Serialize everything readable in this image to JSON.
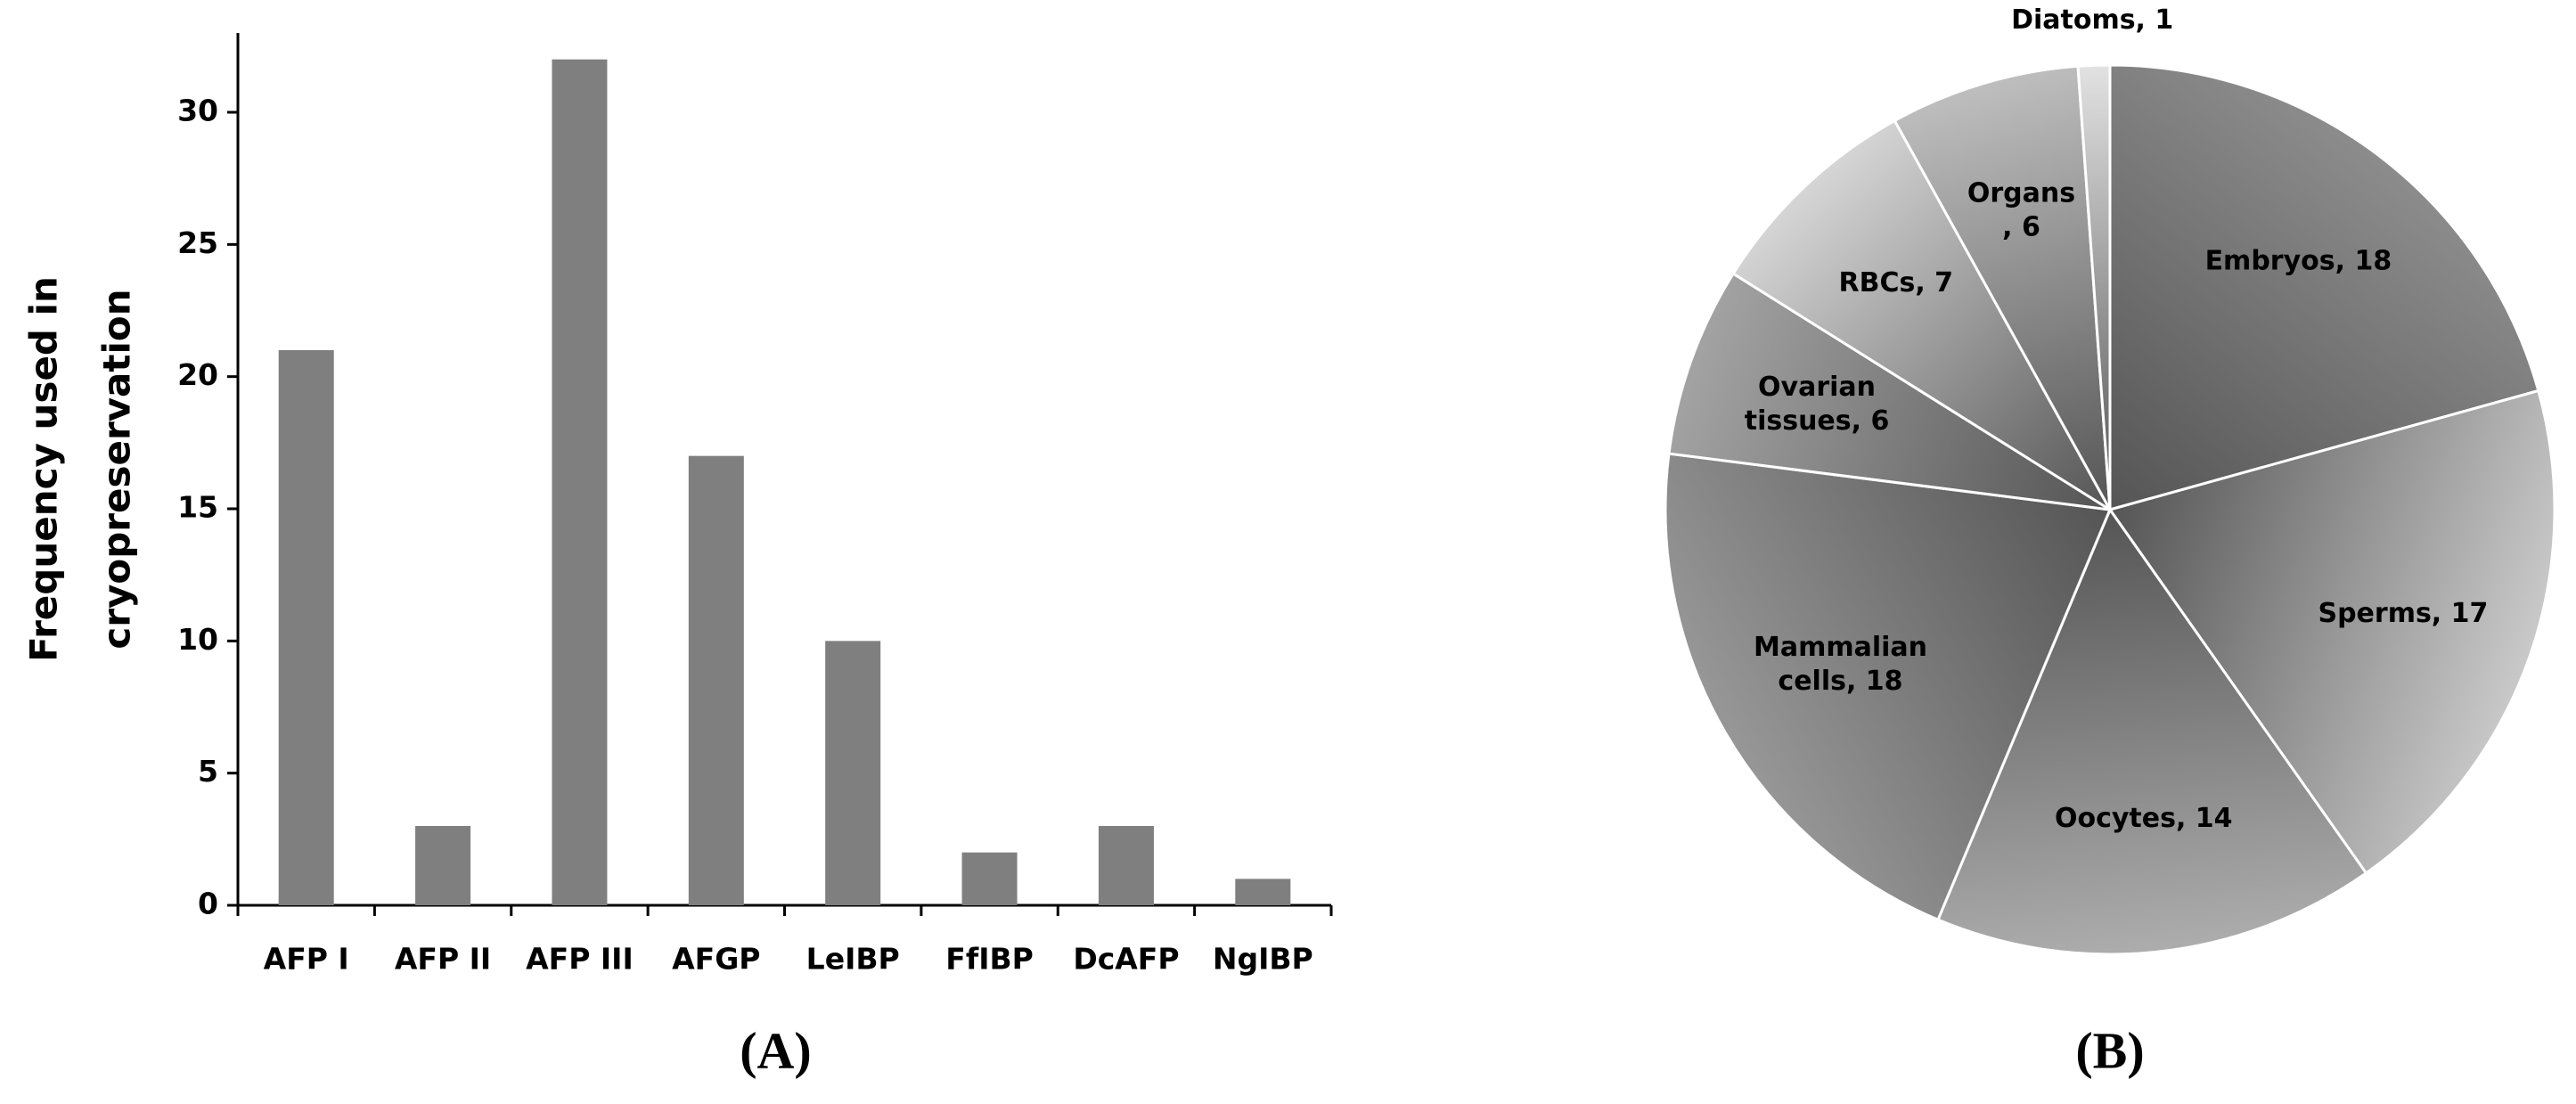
{
  "chart_data": [
    {
      "type": "bar",
      "panel_label": "(A)",
      "y_label": [
        "Frequency used in",
        "cryopreservation"
      ],
      "categories": [
        "AFP I",
        "AFP II",
        "AFP III",
        "AFGP",
        "LeIBP",
        "FfIBP",
        "DcAFP",
        "NgIBP"
      ],
      "values": [
        21,
        3,
        32,
        17,
        10,
        2,
        3,
        1
      ],
      "color": "#7f7f7f",
      "ylim": [
        0,
        33
      ],
      "yticks": [
        0,
        5,
        10,
        15,
        20,
        25,
        30
      ],
      "grid": false
    },
    {
      "type": "pie",
      "panel_label": "(B)",
      "values": [
        18,
        17,
        14,
        18,
        6,
        7,
        6,
        1
      ],
      "value_labels": [
        [
          "Embryos, 18"
        ],
        [
          "Sperms, 17"
        ],
        [
          "Oocytes, 14"
        ],
        [
          "Mammalian",
          "cells, 18"
        ],
        [
          "Ovarian",
          "tissues, 6"
        ],
        [
          "RBCs, 7"
        ],
        [
          "Organs",
          ", 6"
        ],
        [
          "Diatoms, 1"
        ]
      ],
      "colors": [
        "#8c8c8c",
        "#c9c9c9",
        "#adadad",
        "#979797",
        "#a3a3a3",
        "#d6d6d6",
        "#bebebe",
        "#e2e2e2"
      ]
    }
  ]
}
